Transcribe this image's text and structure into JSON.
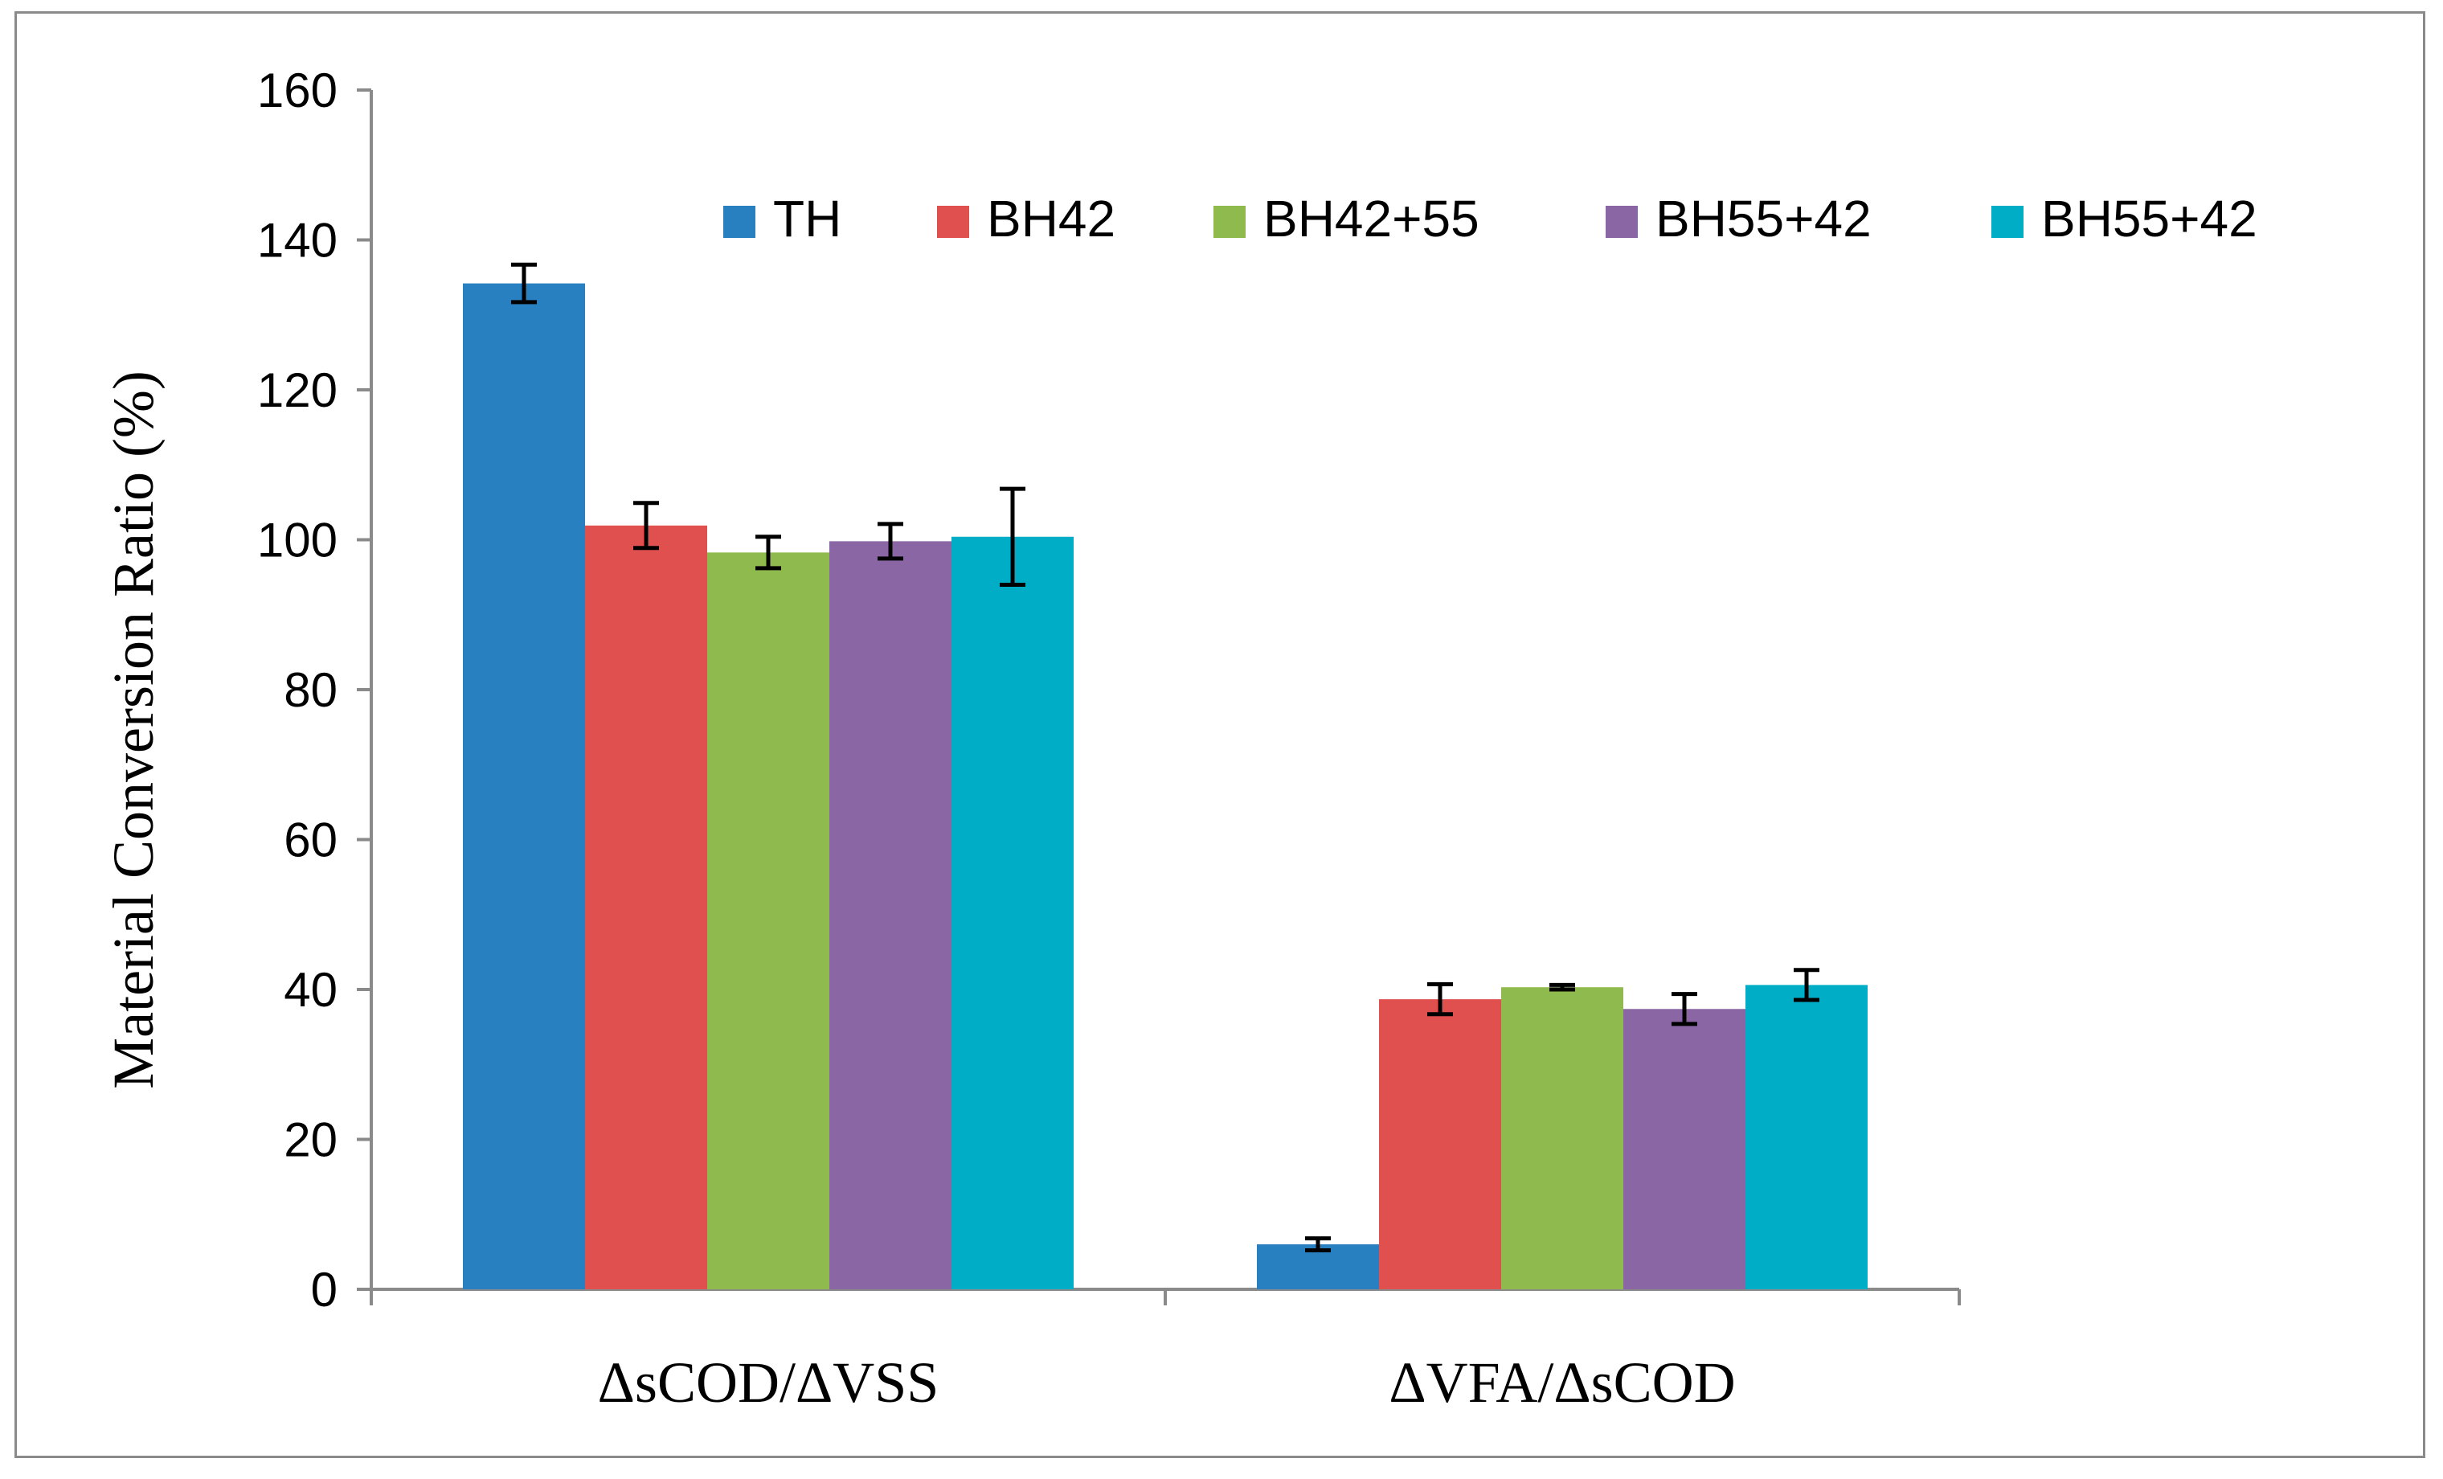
{
  "chart_data": {
    "type": "bar",
    "title": "",
    "xlabel": "",
    "ylabel": "Material Conversion Ratio (%)",
    "ylim": [
      0,
      160
    ],
    "yticks": [
      0,
      20,
      40,
      60,
      80,
      100,
      120,
      140,
      160
    ],
    "categories": [
      "ΔsCOD/ΔVSS",
      "ΔVFA/ΔsCOD"
    ],
    "legend_position": "top-right",
    "grid": false,
    "series": [
      {
        "name": "TH",
        "color": "#2980c0",
        "values": [
          134.2,
          6.0
        ],
        "errors": [
          2.5,
          0.8
        ]
      },
      {
        "name": "BH42",
        "color": "#df504e",
        "values": [
          101.9,
          38.7
        ],
        "errors": [
          3.0,
          2.0
        ]
      },
      {
        "name": "BH42+55",
        "color": "#8fbb4e",
        "values": [
          98.3,
          40.3
        ],
        "errors": [
          2.1,
          0.3
        ]
      },
      {
        "name": "BH55+42",
        "color": "#8b66a5",
        "values": [
          99.8,
          37.4
        ],
        "errors": [
          2.3,
          2.0
        ]
      },
      {
        "name": "BH55+42",
        "color": "#00adc7",
        "values": [
          100.4,
          40.6
        ],
        "errors": [
          6.4,
          2.0
        ]
      }
    ]
  }
}
